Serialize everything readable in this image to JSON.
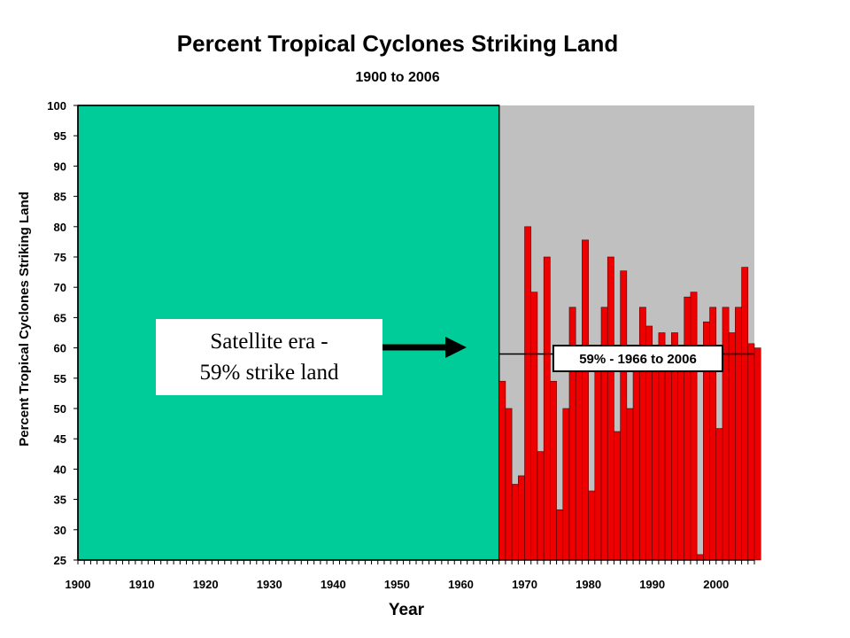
{
  "colors": {
    "pre_satellite_fill": "#00cc99",
    "satellite_background": "#c0c0c0",
    "bar_fill": "#ee0000",
    "bar_stroke": "#550000",
    "mean_line": "#000000"
  },
  "callout": {
    "line1": "Satellite era -",
    "line2": "59% strike land"
  },
  "chart_data": {
    "type": "bar",
    "title": "Percent Tropical Cyclones Striking Land",
    "subtitle": "1900 to 2006",
    "xlabel": "Year",
    "ylabel": "Percent Tropical Cyclones Striking Land",
    "xlim": [
      1900,
      2006
    ],
    "ylim": [
      25,
      100
    ],
    "xticks": [
      1900,
      1910,
      1920,
      1930,
      1940,
      1950,
      1960,
      1970,
      1980,
      1990,
      2000
    ],
    "yticks": [
      25,
      30,
      35,
      40,
      45,
      50,
      55,
      60,
      65,
      70,
      75,
      80,
      85,
      90,
      95,
      100
    ],
    "satellite_era_start": 1966,
    "mean_line": {
      "value": 59,
      "label": "59% - 1966 to 2006"
    },
    "x": [
      1966,
      1967,
      1968,
      1969,
      1970,
      1971,
      1972,
      1973,
      1974,
      1975,
      1976,
      1977,
      1978,
      1979,
      1980,
      1981,
      1982,
      1983,
      1984,
      1985,
      1986,
      1987,
      1988,
      1989,
      1990,
      1991,
      1992,
      1993,
      1994,
      1995,
      1996,
      1997,
      1998,
      1999,
      2000,
      2001,
      2002,
      2003,
      2004,
      2005,
      2006
    ],
    "values": [
      54.5,
      50,
      37.5,
      38.9,
      80,
      69.2,
      42.9,
      75,
      54.5,
      33.3,
      50,
      66.7,
      58.3,
      77.8,
      36.4,
      58.3,
      66.7,
      75,
      46.2,
      72.7,
      50,
      57.1,
      66.7,
      63.6,
      57.1,
      62.5,
      57.1,
      62.5,
      57.1,
      68.4,
      69.2,
      25.9,
      64.3,
      66.7,
      46.7,
      66.7,
      62.5,
      66.7,
      73.3,
      60.7,
      60
    ]
  }
}
